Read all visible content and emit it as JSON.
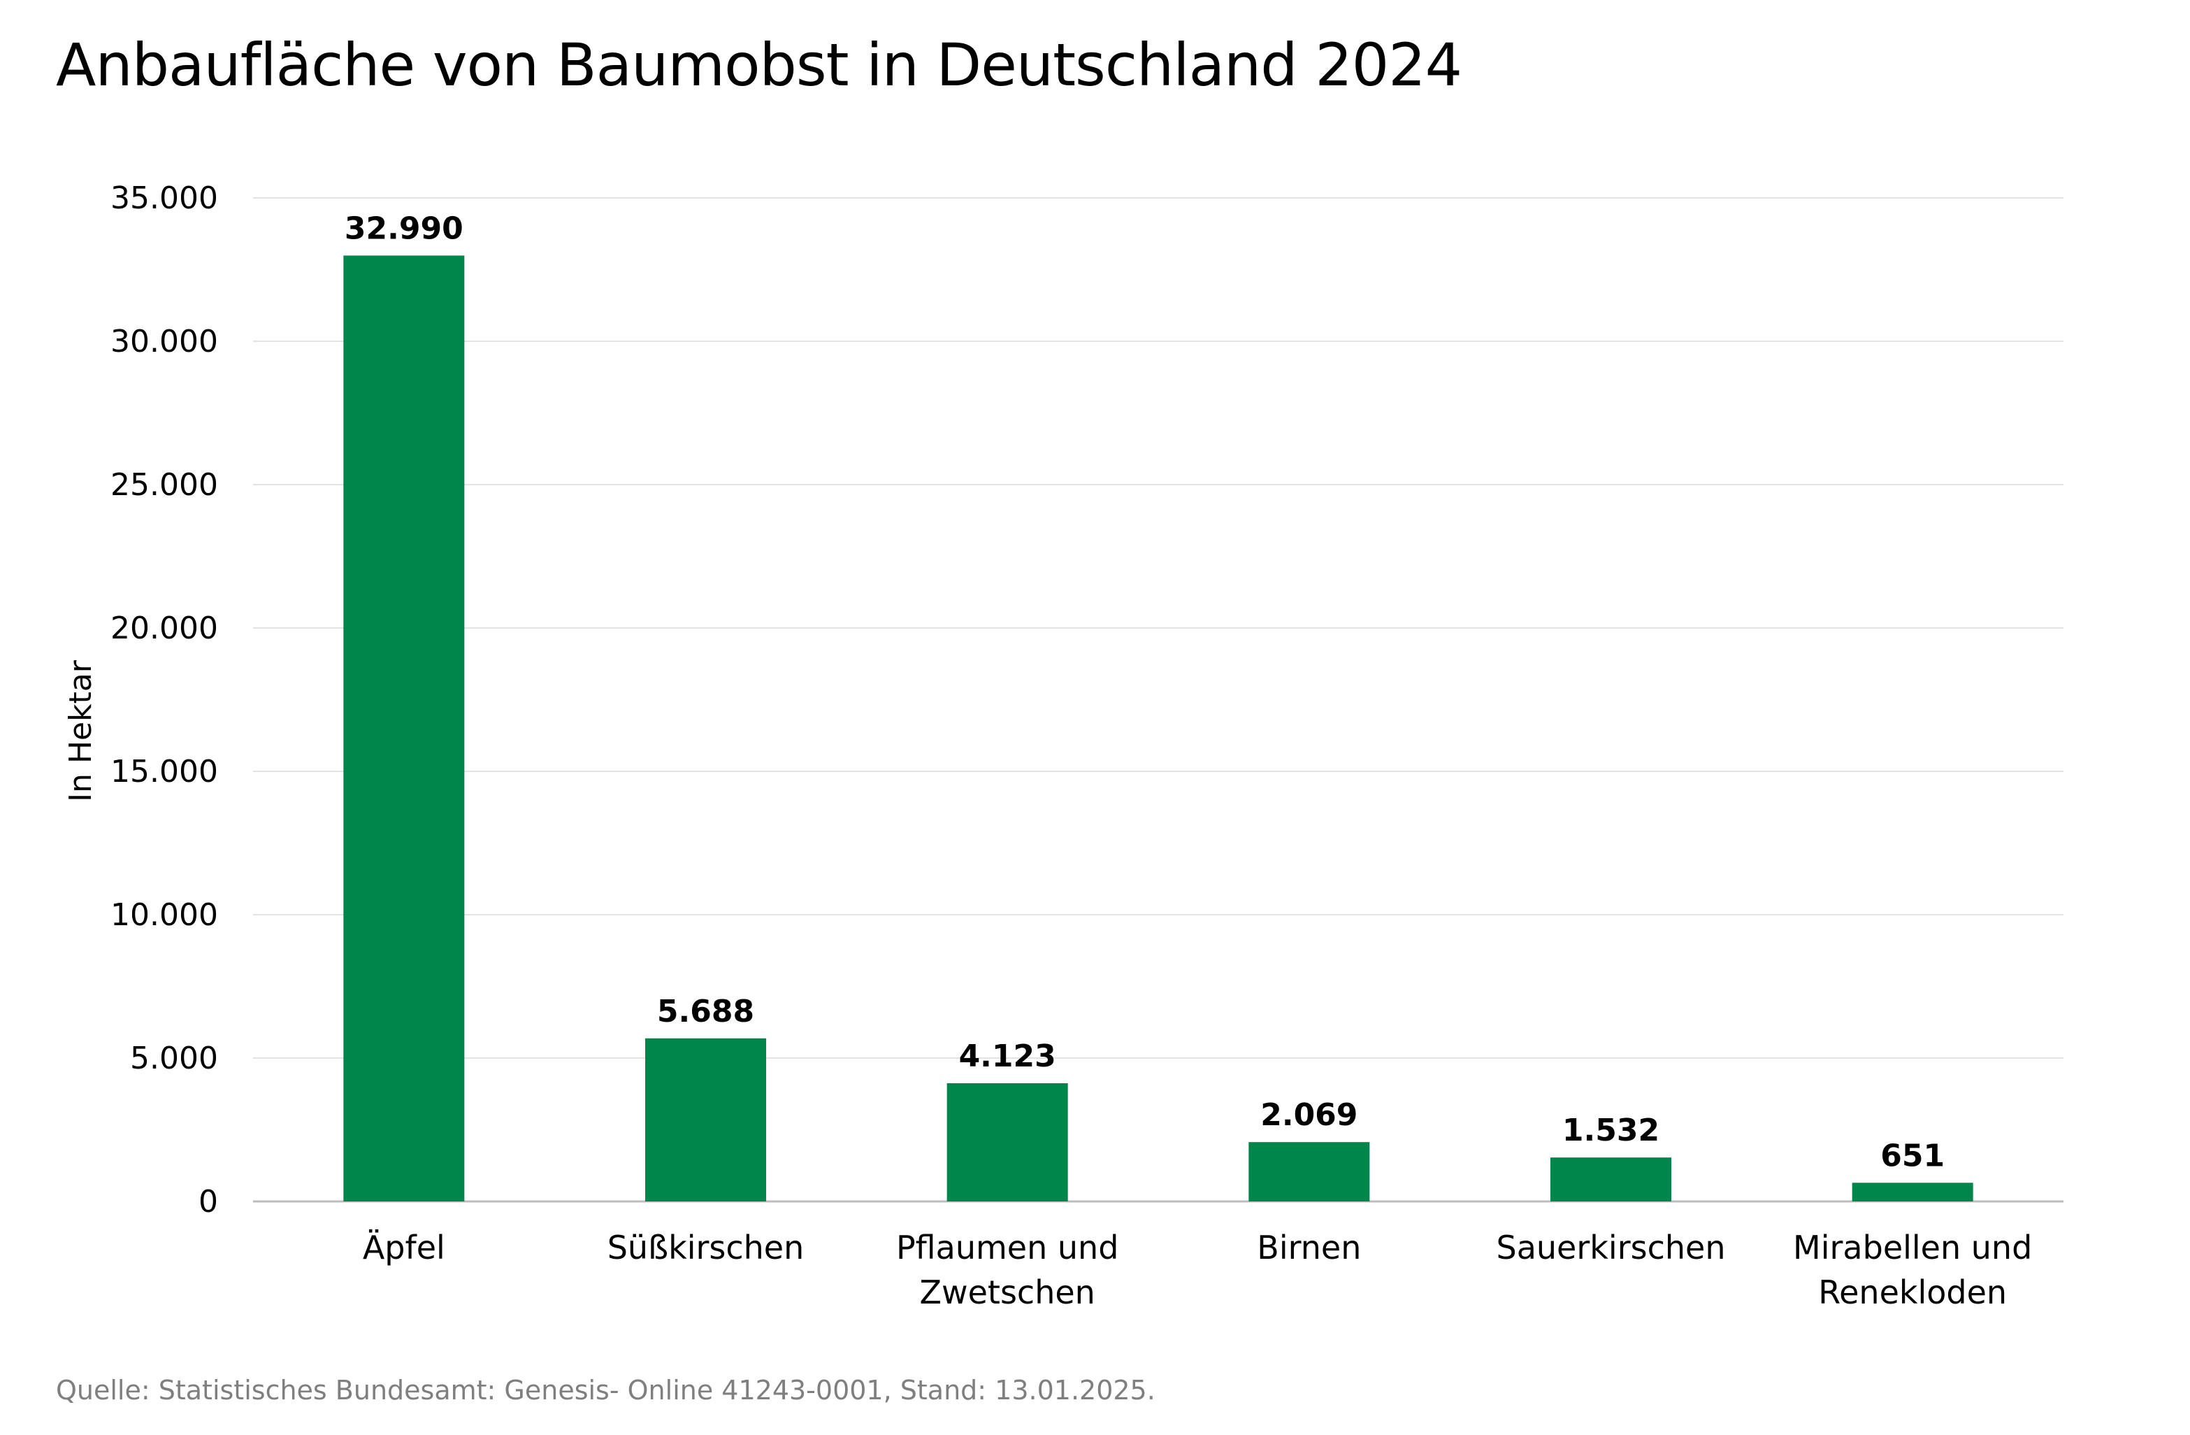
{
  "title": "Anbaufläche von Baumobst in Deutschland 2024",
  "source": "Quelle: Statistisches Bundesamt: Genesis- Online 41243-0001, Stand: 13.01.2025.",
  "chart_data": {
    "type": "bar",
    "title": "Anbaufläche von Baumobst in Deutschland 2024",
    "xlabel": "",
    "ylabel": "In Hektar",
    "ylim": [
      0,
      35000
    ],
    "yticks": [
      0,
      5000,
      10000,
      15000,
      20000,
      25000,
      30000,
      35000
    ],
    "ytick_labels": [
      "0",
      "5.000",
      "10.000",
      "15.000",
      "20.000",
      "25.000",
      "30.000",
      "35.000"
    ],
    "grid": true,
    "categories": [
      [
        "Äpfel"
      ],
      [
        "Süßkirschen"
      ],
      [
        "Pflaumen und",
        "Zwetschen"
      ],
      [
        "Birnen"
      ],
      [
        "Sauerkirschen"
      ],
      [
        "Mirabellen und",
        "Renekloden"
      ]
    ],
    "values": [
      32990,
      5688,
      4123,
      2069,
      1532,
      651
    ],
    "data_labels": [
      "32.990",
      "5.688",
      "4.123",
      "2.069",
      "1.532",
      "651"
    ],
    "bar_color": "#00864b",
    "grid_color": "#e3e3e3",
    "axis_color": "#bdbdbd"
  }
}
